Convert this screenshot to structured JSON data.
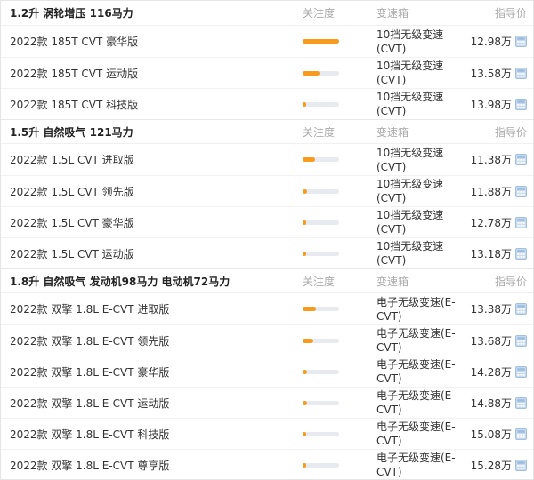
{
  "colors": {
    "accent_orange": "#f89a1c",
    "bar_track_gray": "#e7eaee",
    "column_header_gray": "#aaaaaa",
    "body_text": "#333333",
    "section_title_text": "#222222",
    "calculator_icon_blue": "#aac6e6",
    "row_divider": "#f2f2f2"
  },
  "columns": {
    "attention": "关注度",
    "gearbox": "变速箱",
    "price": "指导价"
  },
  "icons": {
    "price_calculator": "calculator-icon"
  },
  "sections": [
    {
      "title": "1.2升 涡轮增压 116马力",
      "rows": [
        {
          "name": "2022款 185T CVT 豪华版",
          "attention_pct": 100,
          "gearbox": "10挡无级变速 (CVT)",
          "price": "12.98万"
        },
        {
          "name": "2022款 185T CVT 运动版",
          "attention_pct": 46,
          "gearbox": "10挡无级变速 (CVT)",
          "price": "13.58万"
        },
        {
          "name": "2022款 185T CVT 科技版",
          "attention_pct": 8,
          "gearbox": "10挡无级变速 (CVT)",
          "price": "13.98万"
        }
      ]
    },
    {
      "title": "1.5升 自然吸气 121马力",
      "rows": [
        {
          "name": "2022款 1.5L CVT 进取版",
          "attention_pct": 33,
          "gearbox": "10挡无级变速 (CVT)",
          "price": "11.38万"
        },
        {
          "name": "2022款 1.5L CVT 领先版",
          "attention_pct": 12,
          "gearbox": "10挡无级变速 (CVT)",
          "price": "11.88万"
        },
        {
          "name": "2022款 1.5L CVT 豪华版",
          "attention_pct": 7,
          "gearbox": "10挡无级变速 (CVT)",
          "price": "12.78万"
        },
        {
          "name": "2022款 1.5L CVT 运动版",
          "attention_pct": 10,
          "gearbox": "10挡无级变速 (CVT)",
          "price": "13.18万"
        }
      ]
    },
    {
      "title": "1.8升 自然吸气 发动机98马力 电动机72马力",
      "rows": [
        {
          "name": "2022款 双擎 1.8L E-CVT 进取版",
          "attention_pct": 36,
          "gearbox": "电子无级变速(E-CVT)",
          "price": "13.38万"
        },
        {
          "name": "2022款 双擎 1.8L E-CVT 领先版",
          "attention_pct": 30,
          "gearbox": "电子无级变速(E-CVT)",
          "price": "13.68万"
        },
        {
          "name": "2022款 双擎 1.8L E-CVT 豪华版",
          "attention_pct": 12,
          "gearbox": "电子无级变速(E-CVT)",
          "price": "14.28万"
        },
        {
          "name": "2022款 双擎 1.8L E-CVT 运动版",
          "attention_pct": 12,
          "gearbox": "电子无级变速(E-CVT)",
          "price": "14.88万"
        },
        {
          "name": "2022款 双擎 1.8L E-CVT 科技版",
          "attention_pct": 4,
          "gearbox": "电子无级变速(E-CVT)",
          "price": "15.08万"
        },
        {
          "name": "2022款 双擎 1.8L E-CVT 尊享版",
          "attention_pct": 7,
          "gearbox": "电子无级变速(E-CVT)",
          "price": "15.28万"
        }
      ]
    }
  ]
}
